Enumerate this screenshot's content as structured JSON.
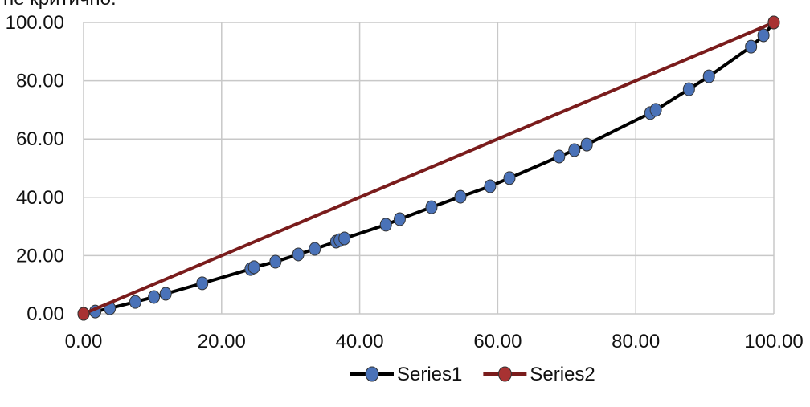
{
  "note": "не критично.",
  "chart_data": {
    "type": "line",
    "xlim": [
      0,
      100
    ],
    "ylim": [
      0,
      100
    ],
    "xticks": [
      {
        "value": 0,
        "label": "0.00"
      },
      {
        "value": 20,
        "label": "20.00"
      },
      {
        "value": 40,
        "label": "40.00"
      },
      {
        "value": 60,
        "label": "60.00"
      },
      {
        "value": 80,
        "label": "80.00"
      },
      {
        "value": 100,
        "label": "100.00"
      }
    ],
    "yticks": [
      {
        "value": 0,
        "label": "0.00"
      },
      {
        "value": 20,
        "label": "20.00"
      },
      {
        "value": 40,
        "label": "40.00"
      },
      {
        "value": 60,
        "label": "60.00"
      },
      {
        "value": 80,
        "label": "80.00"
      },
      {
        "value": 100,
        "label": "100.00"
      }
    ],
    "grid": true,
    "legend": "bottom",
    "series": [
      {
        "name": "Series1",
        "color": "#4a72b8",
        "line_color": "#000000",
        "x": [
          0,
          1.7,
          3.8,
          7.5,
          10.2,
          11.9,
          17.2,
          24.2,
          24.7,
          27.8,
          31.1,
          33.5,
          36.6,
          37.1,
          37.8,
          43.8,
          45.8,
          50.4,
          54.6,
          58.9,
          61.7,
          68.9,
          71.1,
          72.9,
          82.1,
          82.9,
          87.7,
          90.6,
          96.7,
          98.5,
          100
        ],
        "values": [
          0,
          0.8,
          1.9,
          4.1,
          5.8,
          6.9,
          10.5,
          15.4,
          16,
          17.9,
          20.4,
          22.3,
          24.8,
          25.3,
          25.9,
          30.6,
          32.5,
          36.6,
          40.2,
          43.8,
          46.6,
          54,
          56.2,
          58.1,
          68.9,
          70,
          77.1,
          81.5,
          91.7,
          95.6,
          100
        ]
      },
      {
        "name": "Series2",
        "color": "#a83232",
        "line_color": "#7a1c1c",
        "x": [
          0,
          100
        ],
        "values": [
          0,
          100
        ]
      }
    ]
  }
}
